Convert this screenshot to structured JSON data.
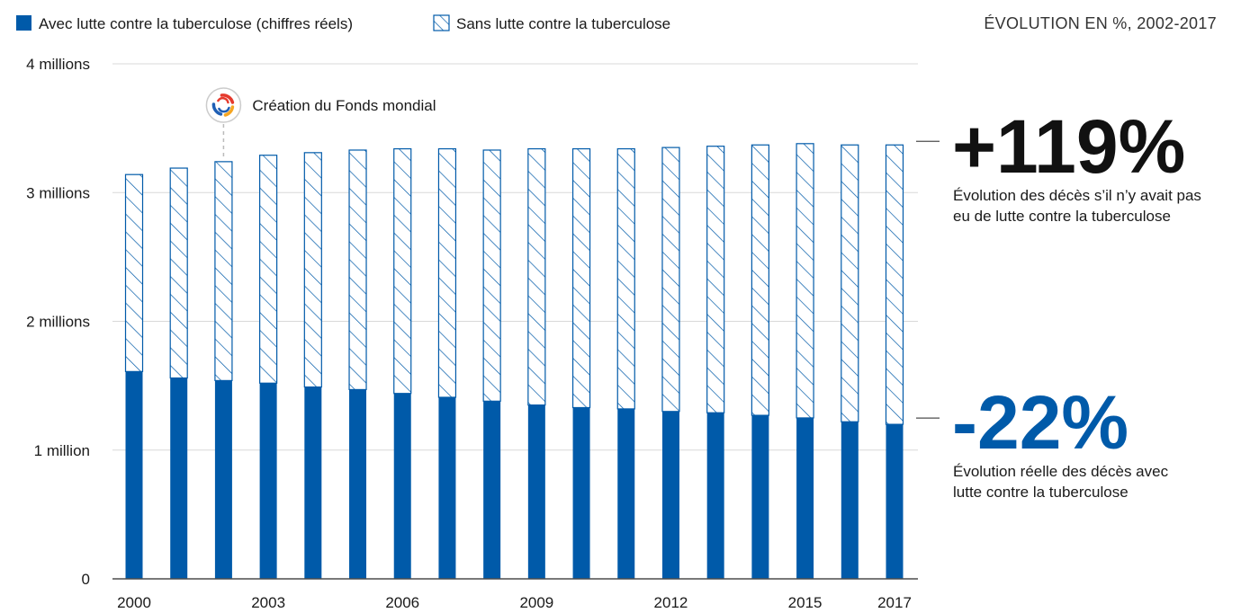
{
  "colors": {
    "real": "#005aa9",
    "hatch": "#005aa9",
    "grid": "#d9d9d9",
    "axis": "#4d4d4d"
  },
  "legend": {
    "real_label": "Avec lutte contre la tuberculose (chiffres réels)",
    "counterfactual_label": "Sans lutte contre la tuberculose"
  },
  "subtitle": "ÉVOLUTION EN %, 2002-2017",
  "annotation": {
    "icon": "global-fund-logo-icon",
    "label": "Création du Fonds mondial",
    "year": 2002
  },
  "callouts": {
    "counterfactual": {
      "value": "+119%",
      "line1": "Évolution des décès s’il n’y avait pas",
      "line2": "eu de lutte contre la tuberculose"
    },
    "real": {
      "value": "-22%",
      "line1": "Évolution réelle des décès avec",
      "line2": "lutte contre la tuberculose"
    }
  },
  "chart_data": {
    "type": "bar",
    "title": "",
    "xlabel": "",
    "ylabel": "",
    "ylim": [
      0,
      4000000
    ],
    "y_ticks": [
      {
        "value": 0,
        "label": "0"
      },
      {
        "value": 1000000,
        "label": "1 million"
      },
      {
        "value": 2000000,
        "label": "2 millions"
      },
      {
        "value": 3000000,
        "label": "3 millions"
      },
      {
        "value": 4000000,
        "label": "4 millions"
      }
    ],
    "x_tick_labels": [
      "2000",
      "2003",
      "2006",
      "2009",
      "2012",
      "2015",
      "2017"
    ],
    "categories": [
      2000,
      2001,
      2002,
      2003,
      2004,
      2005,
      2006,
      2007,
      2008,
      2009,
      2010,
      2011,
      2012,
      2013,
      2014,
      2015,
      2016,
      2017
    ],
    "series": [
      {
        "name": "Avec lutte contre la tuberculose (chiffres réels)",
        "style": "solid",
        "values": [
          1610000,
          1560000,
          1540000,
          1520000,
          1490000,
          1470000,
          1440000,
          1410000,
          1380000,
          1350000,
          1330000,
          1320000,
          1300000,
          1290000,
          1270000,
          1250000,
          1220000,
          1200000
        ]
      },
      {
        "name": "Sans lutte contre la tuberculose",
        "style": "hatched",
        "values": [
          3140000,
          3190000,
          3240000,
          3290000,
          3310000,
          3330000,
          3340000,
          3340000,
          3330000,
          3340000,
          3340000,
          3340000,
          3350000,
          3360000,
          3370000,
          3380000,
          3370000,
          3370000
        ]
      }
    ],
    "grid": true,
    "legend_position": "top-left"
  }
}
